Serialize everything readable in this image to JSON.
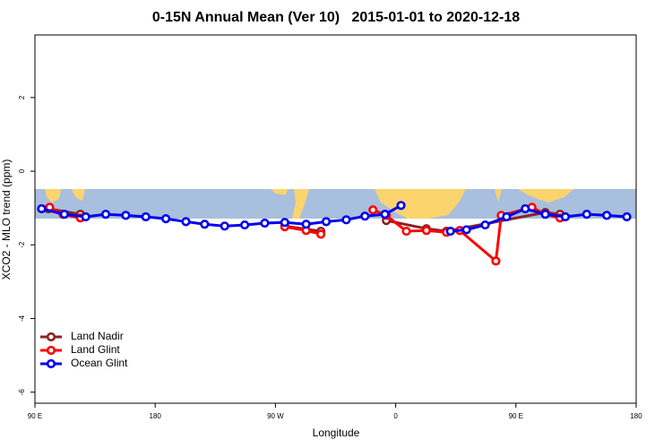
{
  "chart_data": {
    "type": "line",
    "title": "0-15N Annual Mean (Ver 10)   2015-01-01 to 2020-12-18",
    "xlabel": "Longitude",
    "ylabel": "XCO2 - MLO trend (ppm)",
    "xlim": [
      90,
      540
    ],
    "xticks": [
      {
        "value": 90,
        "label": "90 E"
      },
      180,
      {
        "value": 270,
        "label": "90 W"
      },
      {
        "value": 360,
        "label": "0"
      },
      {
        "value": 450,
        "label": "90 E"
      },
      {
        "value": 540,
        "label": "180"
      }
    ],
    "ylim": [
      -6.3,
      3.7
    ],
    "yticks": [
      2,
      0,
      -2,
      -4,
      -6
    ],
    "legend": "bottom-left",
    "series": [
      {
        "name": "Land Nadir",
        "color": "#8b2323",
        "x": [
          100,
          124,
          null,
          277,
          304,
          null,
          353,
          383,
          398,
          472,
          483
        ],
        "values": [
          -1.02,
          -1.17,
          null,
          -1.49,
          -1.63,
          null,
          -1.34,
          -1.56,
          -1.63,
          -1.12,
          -1.17
        ]
      },
      {
        "name": "Land Glint",
        "color": "#ff0000",
        "x": [
          101,
          111,
          124,
          null,
          277,
          293,
          304,
          null,
          343,
          353,
          368,
          383,
          398,
          408,
          435,
          439,
          462,
          472,
          483
        ],
        "values": [
          -0.98,
          -1.17,
          -1.27,
          null,
          -1.51,
          -1.61,
          -1.71,
          null,
          -1.05,
          -1.2,
          -1.63,
          -1.61,
          -1.66,
          -1.61,
          -2.44,
          -1.2,
          -0.98,
          -1.17,
          -1.27
        ]
      },
      {
        "name": "Ocean Glint",
        "color": "#0000ee",
        "x": [
          95,
          112,
          128,
          143,
          158,
          173,
          188,
          203,
          217,
          232,
          247,
          262,
          277,
          293,
          308,
          323,
          337,
          352,
          364,
          null,
          401,
          413,
          427,
          443,
          457,
          472,
          487,
          503,
          518,
          533
        ],
        "values": [
          -1.02,
          -1.17,
          -1.24,
          -1.17,
          -1.2,
          -1.24,
          -1.29,
          -1.37,
          -1.44,
          -1.49,
          -1.46,
          -1.41,
          -1.39,
          -1.44,
          -1.37,
          -1.32,
          -1.22,
          -1.17,
          -0.93,
          null,
          -1.63,
          -1.59,
          -1.46,
          -1.24,
          -1.02,
          -1.17,
          -1.24,
          -1.17,
          -1.2,
          -1.24
        ]
      }
    ]
  }
}
